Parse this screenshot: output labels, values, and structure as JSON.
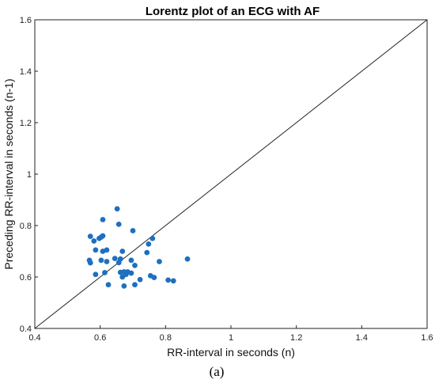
{
  "chart_data": {
    "type": "scatter",
    "title": "Lorentz plot of an ECG with AF",
    "xlabel": "RR-interval in seconds (n)",
    "ylabel": "Preceding RR-interval in seconds (n-1)",
    "xlim": [
      0.4,
      1.6
    ],
    "ylim": [
      0.4,
      1.6
    ],
    "xticks": [
      "0.4",
      "0.6",
      "0.8",
      "1",
      "1.2",
      "1.4",
      "1.6"
    ],
    "yticks": [
      "0.4",
      "0.6",
      "0.8",
      "1",
      "1.2",
      "1.4",
      "1.6"
    ],
    "xtick_values": [
      0.4,
      0.6,
      0.8,
      1.0,
      1.2,
      1.4,
      1.6
    ],
    "ytick_values": [
      0.4,
      0.6,
      0.8,
      1.0,
      1.2,
      1.4,
      1.6
    ],
    "grid": false,
    "reference_line": {
      "from": [
        0.4,
        0.4
      ],
      "to": [
        1.6,
        1.6
      ],
      "color": "#222222"
    },
    "marker_color": "#1f6fbf",
    "points": [
      {
        "x": 0.567,
        "y": 0.665
      },
      {
        "x": 0.57,
        "y": 0.655
      },
      {
        "x": 0.57,
        "y": 0.758
      },
      {
        "x": 0.581,
        "y": 0.74
      },
      {
        "x": 0.586,
        "y": 0.61
      },
      {
        "x": 0.586,
        "y": 0.705
      },
      {
        "x": 0.597,
        "y": 0.75
      },
      {
        "x": 0.603,
        "y": 0.665
      },
      {
        "x": 0.603,
        "y": 0.755
      },
      {
        "x": 0.608,
        "y": 0.823
      },
      {
        "x": 0.608,
        "y": 0.7
      },
      {
        "x": 0.608,
        "y": 0.76
      },
      {
        "x": 0.614,
        "y": 0.617
      },
      {
        "x": 0.62,
        "y": 0.705
      },
      {
        "x": 0.62,
        "y": 0.66
      },
      {
        "x": 0.625,
        "y": 0.57
      },
      {
        "x": 0.645,
        "y": 0.672
      },
      {
        "x": 0.652,
        "y": 0.865
      },
      {
        "x": 0.657,
        "y": 0.805
      },
      {
        "x": 0.657,
        "y": 0.656
      },
      {
        "x": 0.662,
        "y": 0.618
      },
      {
        "x": 0.662,
        "y": 0.67
      },
      {
        "x": 0.668,
        "y": 0.7
      },
      {
        "x": 0.668,
        "y": 0.6
      },
      {
        "x": 0.673,
        "y": 0.62
      },
      {
        "x": 0.673,
        "y": 0.565
      },
      {
        "x": 0.679,
        "y": 0.61
      },
      {
        "x": 0.684,
        "y": 0.62
      },
      {
        "x": 0.695,
        "y": 0.615
      },
      {
        "x": 0.695,
        "y": 0.665
      },
      {
        "x": 0.7,
        "y": 0.78
      },
      {
        "x": 0.706,
        "y": 0.57
      },
      {
        "x": 0.706,
        "y": 0.645
      },
      {
        "x": 0.722,
        "y": 0.59
      },
      {
        "x": 0.743,
        "y": 0.695
      },
      {
        "x": 0.748,
        "y": 0.728
      },
      {
        "x": 0.754,
        "y": 0.605
      },
      {
        "x": 0.76,
        "y": 0.75
      },
      {
        "x": 0.765,
        "y": 0.598
      },
      {
        "x": 0.781,
        "y": 0.66
      },
      {
        "x": 0.808,
        "y": 0.588
      },
      {
        "x": 0.824,
        "y": 0.585
      },
      {
        "x": 0.867,
        "y": 0.67
      }
    ]
  },
  "caption": "(a)"
}
